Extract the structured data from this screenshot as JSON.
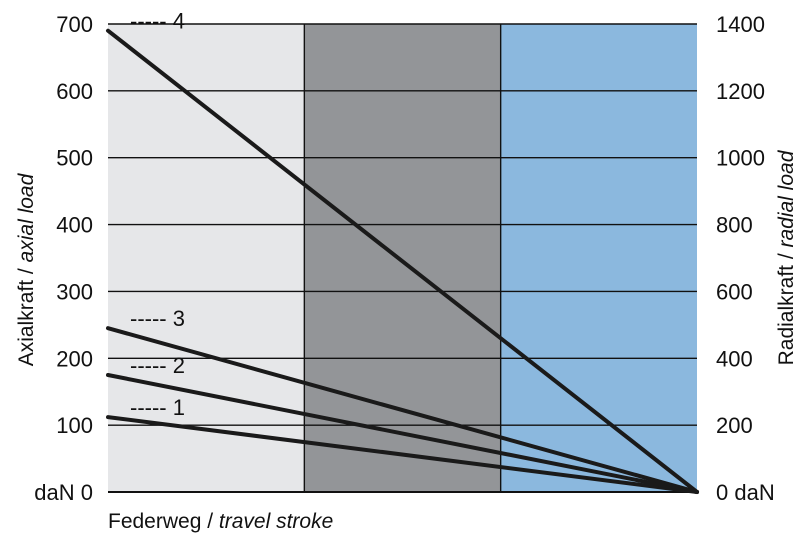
{
  "chart_data": {
    "type": "line",
    "x_categories": [
      "",
      "",
      ""
    ],
    "x_label_de": "Federweg / ",
    "x_label_en": "travel stroke",
    "y_left_label_de": "Axialkraft / ",
    "y_left_label_en": "axial load",
    "y_right_label_de": "Radialkraft / ",
    "y_right_label_en": "radial load",
    "y_left_ticks": [
      "daN 0",
      "100",
      "200",
      "300",
      "400",
      "500",
      "600",
      "700"
    ],
    "y_right_ticks": [
      "0 daN",
      "200",
      "400",
      "600",
      "800",
      "1000",
      "1200",
      "1400"
    ],
    "y_left_range": [
      0,
      700
    ],
    "y_right_range": [
      0,
      1400
    ],
    "x_range": [
      0,
      1
    ],
    "zones": [
      {
        "from": 0,
        "to": 0.333,
        "color": "#e6e7e9"
      },
      {
        "from": 0.333,
        "to": 0.667,
        "color": "#939598"
      },
      {
        "from": 0.667,
        "to": 1,
        "color": "#8bb8de"
      }
    ],
    "grid": true,
    "series": [
      {
        "name": "1",
        "label_text": "----- 1",
        "points": [
          [
            0,
            112
          ],
          [
            1,
            0
          ]
        ]
      },
      {
        "name": "2",
        "label_text": "----- 2",
        "points": [
          [
            0,
            175
          ],
          [
            1,
            0
          ]
        ]
      },
      {
        "name": "3",
        "label_text": "----- 3",
        "points": [
          [
            0,
            245
          ],
          [
            1,
            0
          ]
        ]
      },
      {
        "name": "4",
        "label_text": "----- 4",
        "points": [
          [
            0,
            690
          ],
          [
            1,
            0
          ]
        ]
      }
    ]
  }
}
